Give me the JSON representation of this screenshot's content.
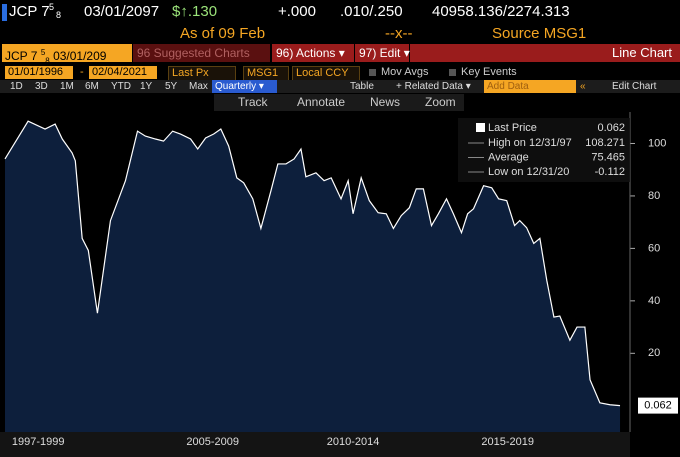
{
  "header": {
    "ticker": "JCP 7",
    "frac_num": "5",
    "frac_den": "8",
    "maturity": "03/01/2097",
    "price": "$↑.130",
    "change": "+.000",
    "bid_ask": ".010/.250",
    "size": "40958.136/2274.313",
    "as_of": "As of 09 Feb",
    "mid": "--x--",
    "source": "Source MSG1"
  },
  "toolbar": {
    "ticker": "JCP 7",
    "frac_num": "5",
    "frac_den": "8",
    "maturity": "03/01/209",
    "suggested": "96 Suggested Charts",
    "actions": "96) Actions ▾",
    "edit": "97) Edit ▾",
    "chart_kind": "Line Chart",
    "start_date": "01/01/1996",
    "dash": "-",
    "end_date": "02/04/2021",
    "field": "Last Px",
    "source": "MSG1",
    "currency": "Local CCY",
    "mov_avgs": "Mov Avgs",
    "key_events": "Key Events",
    "periods": [
      "1D",
      "3D",
      "1M",
      "6M",
      "YTD",
      "1Y",
      "5Y",
      "Max"
    ],
    "frequency": "Quarterly ▾",
    "table": "Table",
    "related": "+ Related Data ▾",
    "add_data": "Add Data",
    "collapse": "«",
    "edit_chart": "Edit Chart",
    "tools": [
      "Track",
      "Annotate",
      "News",
      "Zoom"
    ]
  },
  "chart_data": {
    "type": "area",
    "x": [
      1996.0,
      1996.94,
      1997.63,
      1998.04,
      1998.33,
      1998.73,
      1998.86,
      1999.14,
      1999.39,
      1999.76,
      2000.29,
      2000.9,
      2001.39,
      2001.71,
      2002.12,
      2002.45,
      2002.82,
      2003.14,
      2003.55,
      2003.84,
      2004.16,
      2004.49,
      2004.78,
      2005.1,
      2005.43,
      2005.71,
      2006.08,
      2006.41,
      2006.82,
      2007.1,
      2007.43,
      2007.76,
      2008.04,
      2008.24,
      2008.65,
      2008.98,
      2009.27,
      2009.67,
      2009.96,
      2010.16,
      2010.49,
      2010.82,
      2011.18,
      2011.51,
      2011.8,
      2012.12,
      2012.45,
      2012.73,
      2013.02,
      2013.35,
      2013.63,
      2013.96,
      2014.24,
      2014.57,
      2014.82,
      2015.06,
      2015.47,
      2015.8,
      2016.08,
      2016.41,
      2016.73,
      2016.94,
      2017.22,
      2017.51,
      2017.76,
      2018.04,
      2018.33,
      2018.57,
      2018.98,
      2019.27,
      2019.59,
      2019.8,
      2020.2,
      2020.61,
      2021.02
    ],
    "series": [
      {
        "name": "Last Price",
        "color": "#ffffff",
        "fill": "#0d1f3c",
        "values": [
          94.1,
          108.5,
          105.5,
          107.4,
          101.7,
          96.4,
          93.4,
          63.8,
          59.2,
          35.3,
          70.6,
          85.8,
          104.7,
          102.8,
          101.7,
          100.9,
          104.7,
          103.6,
          101.7,
          97.9,
          102.1,
          103.6,
          105.5,
          99.0,
          86.9,
          85.0,
          78.9,
          67.6,
          82.0,
          92.2,
          92.2,
          94.1,
          97.9,
          87.3,
          88.8,
          85.8,
          86.9,
          78.9,
          85.8,
          73.2,
          86.9,
          78.2,
          73.6,
          73.2,
          67.6,
          72.5,
          75.5,
          82.7,
          82.7,
          68.7,
          73.2,
          78.9,
          73.2,
          66.0,
          73.2,
          75.1,
          83.9,
          83.1,
          78.9,
          78.2,
          68.7,
          70.6,
          67.9,
          61.9,
          63.8,
          47.8,
          33.8,
          34.2,
          25.0,
          30.0,
          30.0,
          9.9,
          1.1,
          0.4,
          0.062
        ]
      }
    ],
    "xlim": [
      1996,
      2021.1
    ],
    "ylim": [
      -10,
      112
    ],
    "xticks": [
      {
        "value": 1997.35,
        "label": "1997-1999"
      },
      {
        "value": 2004.45,
        "label": "2005-2009"
      },
      {
        "value": 2010.16,
        "label": "2010-2014"
      },
      {
        "value": 2016.45,
        "label": "2015-2019"
      }
    ],
    "yticks": [
      20,
      40,
      60,
      80,
      100
    ],
    "stats": [
      {
        "label": "High on 12/31/97",
        "value": 108.271
      },
      {
        "label": "Average",
        "value": 75.465
      },
      {
        "label": "Low on 12/31/20",
        "value": -0.112
      }
    ]
  }
}
